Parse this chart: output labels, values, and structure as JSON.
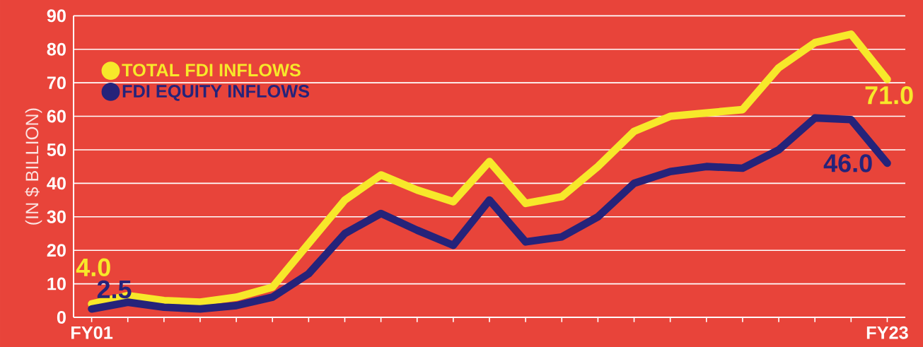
{
  "chart_data": {
    "type": "line",
    "ylabel": "(IN $ BILLION)",
    "categories": [
      "FY01",
      null,
      null,
      null,
      null,
      null,
      null,
      null,
      null,
      null,
      null,
      null,
      null,
      null,
      null,
      null,
      null,
      null,
      null,
      null,
      null,
      null,
      "FY23"
    ],
    "series": [
      {
        "name": "TOTAL FDI INFLOWS",
        "color": "#f7e82a",
        "values": [
          4.0,
          6.5,
          5,
          4.5,
          6,
          9,
          22,
          35,
          42.5,
          38,
          34.5,
          46.5,
          34,
          36,
          45,
          55.5,
          60,
          61,
          62,
          74.5,
          82,
          84.5,
          71.0
        ],
        "value_labels": [
          "4.0",
          null,
          null,
          null,
          null,
          null,
          null,
          null,
          null,
          null,
          null,
          null,
          null,
          null,
          null,
          null,
          null,
          null,
          null,
          null,
          null,
          null,
          "71.0"
        ]
      },
      {
        "name": "FDI EQUITY INFLOWS",
        "color": "#25237a",
        "values": [
          2.5,
          4.5,
          3,
          2.5,
          3.5,
          6,
          13,
          25,
          31,
          26,
          21.5,
          35,
          22.5,
          24,
          30,
          40,
          43.5,
          45,
          44.5,
          50,
          59.5,
          59,
          46.0
        ],
        "value_labels": [
          "2.5",
          null,
          null,
          null,
          null,
          null,
          null,
          null,
          null,
          null,
          null,
          null,
          null,
          null,
          null,
          null,
          null,
          null,
          null,
          null,
          null,
          null,
          "46.0"
        ]
      }
    ],
    "ylim": [
      0,
      90
    ],
    "yticks": [
      0,
      10,
      20,
      30,
      40,
      50,
      60,
      70,
      80,
      90
    ],
    "grid": "y",
    "legend": "top left",
    "marker": "none",
    "line_style": "solid"
  }
}
